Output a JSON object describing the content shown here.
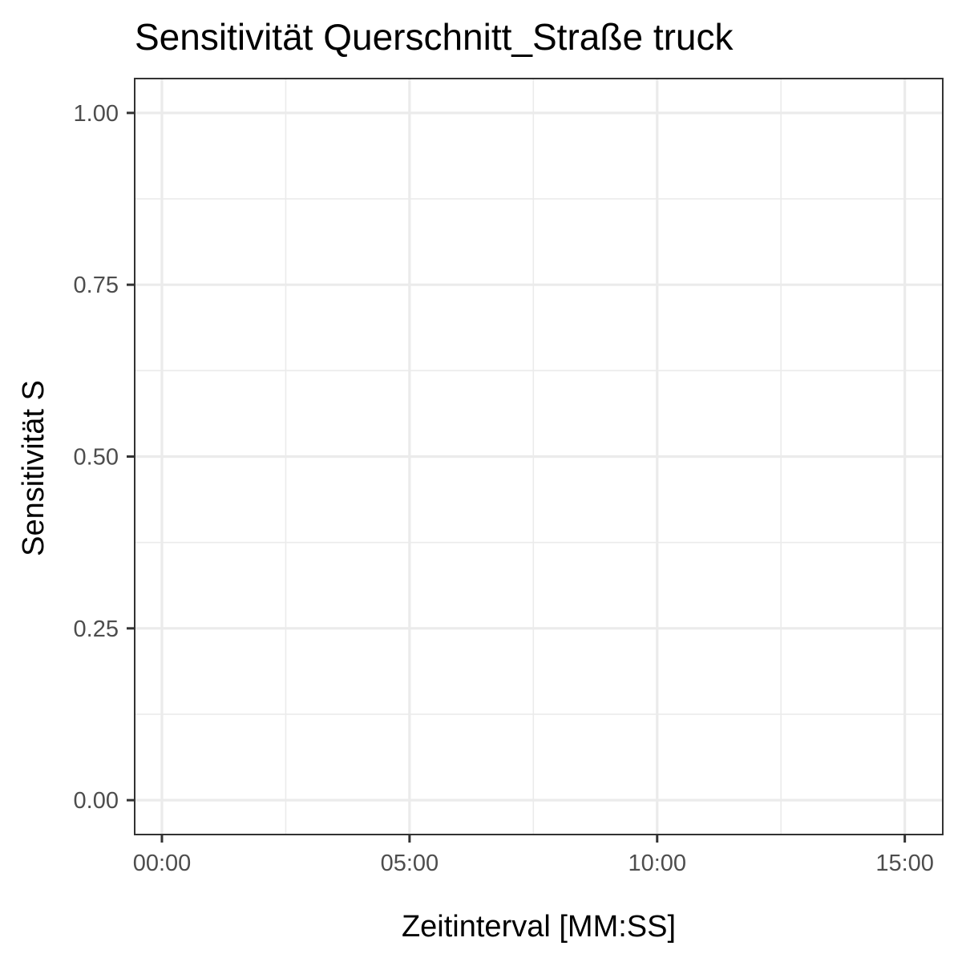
{
  "chart_data": {
    "type": "line",
    "title": "Sensitivität Querschnitt_Straße truck",
    "xlabel": "Zeitinterval [MM:SS]",
    "ylabel": "Sensitivität S",
    "x_tick_labels": [
      "00:00",
      "05:00",
      "10:00",
      "15:00"
    ],
    "y_tick_labels": [
      "0.00",
      "0.25",
      "0.50",
      "0.75",
      "1.00"
    ],
    "x_ticks_seconds": [
      0,
      300,
      600,
      900
    ],
    "y_ticks": [
      0,
      0.25,
      0.5,
      0.75,
      1.0
    ],
    "xlim_seconds": [
      -33,
      946
    ],
    "ylim": [
      -0.05,
      1.05
    ],
    "grid": true,
    "series": []
  }
}
